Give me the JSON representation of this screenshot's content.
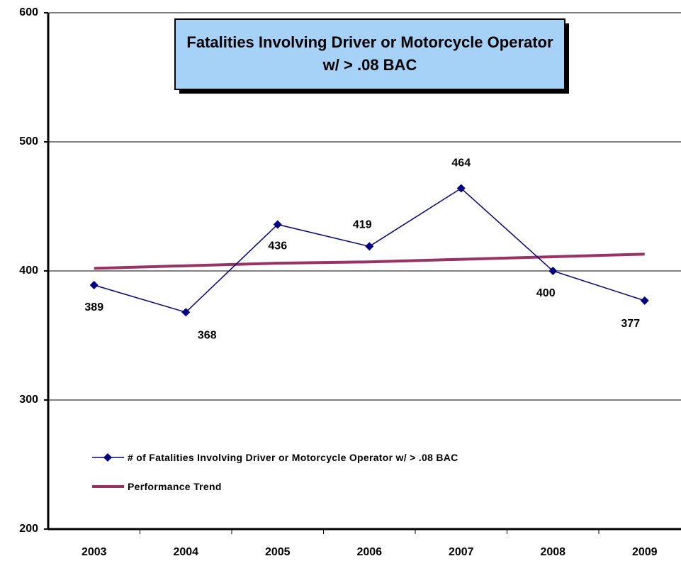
{
  "chart_data": {
    "type": "line",
    "title": "Fatalities Involving Driver or Motorcycle Operator w/ > .08 BAC",
    "categories": [
      "2003",
      "2004",
      "2005",
      "2006",
      "2007",
      "2008",
      "2009"
    ],
    "series": [
      {
        "name": "# of Fatalities Involving Driver or Motorcycle Operator w/ > .08 BAC",
        "color": "#000080",
        "marker": "diamond",
        "data_labels": true,
        "values": [
          389,
          368,
          436,
          419,
          464,
          400,
          377
        ]
      },
      {
        "name": "Performance Trend",
        "color": "#993366",
        "values": [
          402,
          404,
          406,
          407,
          409,
          411,
          413
        ]
      }
    ],
    "ylim": [
      200,
      600
    ],
    "yticks": [
      200,
      300,
      400,
      500,
      600
    ],
    "grid": true
  }
}
